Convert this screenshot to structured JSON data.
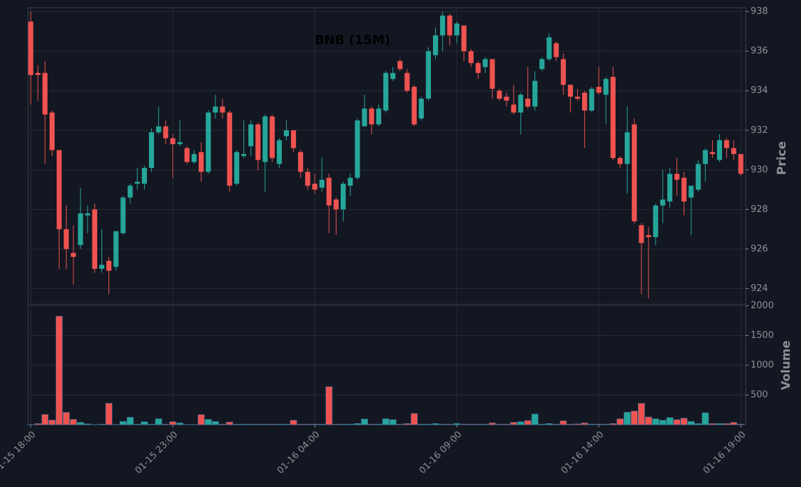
{
  "chart_data": {
    "type": "candlestick",
    "title": "BNB (15M)",
    "categories": [
      "01-15 18:00",
      null,
      null,
      null,
      null,
      null,
      null,
      null,
      null,
      null,
      null,
      null,
      null,
      null,
      null,
      null,
      null,
      null,
      null,
      null,
      "01-15 23:00",
      null,
      null,
      null,
      null,
      null,
      null,
      null,
      null,
      null,
      null,
      null,
      null,
      null,
      null,
      null,
      null,
      null,
      null,
      null,
      "01-16 04:00",
      null,
      null,
      null,
      null,
      null,
      null,
      null,
      null,
      null,
      null,
      null,
      null,
      null,
      null,
      null,
      null,
      null,
      null,
      null,
      "01-16 09:00",
      null,
      null,
      null,
      null,
      null,
      null,
      null,
      null,
      null,
      null,
      null,
      null,
      null,
      null,
      null,
      null,
      null,
      null,
      null,
      "01-16 14:00",
      null,
      null,
      null,
      null,
      null,
      null,
      null,
      null,
      null,
      null,
      null,
      null,
      null,
      null,
      null,
      null,
      null,
      null,
      null,
      "01-16 19:00"
    ],
    "open": [
      937.5,
      934.9,
      934.9,
      932.9,
      931,
      927,
      925.8,
      926.2,
      927.7,
      928,
      925,
      925.4,
      925.1,
      926.8,
      928.6,
      929.3,
      929.3,
      930.1,
      931.9,
      932.2,
      931.6,
      931.3,
      931.1,
      930.4,
      930.9,
      929.9,
      932.9,
      933.2,
      932.9,
      929.3,
      930.7,
      931.2,
      932.3,
      930.4,
      932.7,
      930.3,
      931.7,
      932,
      930.9,
      929.9,
      929.3,
      929.1,
      929.6,
      928.5,
      928,
      929.2,
      929.6,
      932.2,
      933.1,
      932.3,
      933,
      934.6,
      935.5,
      934.9,
      934.2,
      932.6,
      933.6,
      935.8,
      936.8,
      937.8,
      936.8,
      937.3,
      936,
      935.4,
      935.2,
      935.6,
      934,
      933.7,
      933.3,
      932.9,
      933.6,
      933.2,
      935.1,
      935.6,
      936.4,
      935.6,
      934.3,
      933.7,
      933.9,
      933,
      934.2,
      933.8,
      934.7,
      930.6,
      930.3,
      932.3,
      927.2,
      926.7,
      926.6,
      928.2,
      928.4,
      929.8,
      929.6,
      928.6,
      929,
      930.3,
      930.9,
      930.5,
      931.5,
      931.1,
      930.8
    ],
    "high": [
      938,
      935.3,
      935.5,
      933,
      931,
      928.2,
      927.2,
      929.1,
      928.2,
      928.3,
      927,
      925.6,
      926.9,
      928.7,
      929.3,
      930.1,
      930.2,
      932.1,
      933.2,
      932.5,
      931.8,
      932.5,
      931.2,
      931,
      931.4,
      933,
      933.8,
      933.6,
      933,
      931,
      932.5,
      932.5,
      932.4,
      932.8,
      932.8,
      931.6,
      932.5,
      932,
      931,
      930.1,
      929.8,
      930.6,
      929.8,
      928.6,
      929.4,
      929.8,
      932.6,
      933.8,
      933.2,
      933.3,
      935,
      935.2,
      935.6,
      935.1,
      934.3,
      933.7,
      936.2,
      937.2,
      938,
      937.9,
      937.5,
      937.3,
      936.1,
      935.5,
      935.7,
      935.6,
      934.1,
      933.9,
      934.3,
      933.9,
      935.2,
      935,
      935.7,
      936.9,
      936.5,
      935.9,
      934.3,
      934.1,
      934,
      934.2,
      935.2,
      934.7,
      935.2,
      930.7,
      933.2,
      932.6,
      927.3,
      927.1,
      928.3,
      930,
      930.1,
      930.6,
      929.9,
      929.2,
      930.5,
      931.1,
      931.5,
      931.8,
      931.6,
      931.5,
      930.8
    ],
    "low": [
      933.3,
      933.5,
      930.3,
      930.7,
      925,
      925,
      924.2,
      926,
      926.8,
      924.8,
      924.8,
      923.7,
      924.9,
      926.7,
      928.3,
      929,
      929,
      929.9,
      931.8,
      931.3,
      929.6,
      931.2,
      930.3,
      930.3,
      929.4,
      929.8,
      932.6,
      932.6,
      928.9,
      929.2,
      930.6,
      930.7,
      930,
      928.9,
      930.4,
      930.1,
      931.5,
      930.9,
      929.6,
      929,
      928.8,
      928.9,
      926.8,
      926.7,
      927.4,
      928.7,
      929.5,
      932.2,
      931.8,
      932.2,
      932.9,
      934.5,
      935,
      933.9,
      932.2,
      932.5,
      933.5,
      935.6,
      936,
      936.3,
      936.4,
      935.5,
      935.2,
      934.6,
      934.9,
      933.6,
      933.5,
      933.2,
      932.8,
      931.8,
      933.1,
      933,
      935,
      935.5,
      935.5,
      933.8,
      932.9,
      933.5,
      931.1,
      932.9,
      933.8,
      932.3,
      930.5,
      930.1,
      928.8,
      927.3,
      923.7,
      923.5,
      926.2,
      927.3,
      928.1,
      928.7,
      927.7,
      926.7,
      928.9,
      929.4,
      930.6,
      930.4,
      930.6,
      930.5,
      929.7
    ],
    "close": [
      934.8,
      934.8,
      932.8,
      931,
      927,
      926,
      925.6,
      927.8,
      927.8,
      925,
      925.2,
      924.9,
      926.9,
      928.6,
      929.2,
      929.4,
      930.1,
      931.9,
      932.2,
      931.6,
      931.3,
      931.4,
      930.4,
      930.8,
      929.9,
      932.9,
      933.2,
      932.9,
      929.2,
      930.9,
      930.8,
      932.3,
      930.5,
      932.7,
      930.6,
      931.5,
      932,
      931.1,
      929.9,
      929.2,
      929,
      929.5,
      928.2,
      928,
      929.3,
      929.6,
      932.5,
      933.1,
      932.3,
      933.1,
      934.9,
      934.9,
      935.1,
      934,
      932.3,
      933.6,
      936,
      936.8,
      937.8,
      936.8,
      937.4,
      936,
      935.4,
      934.9,
      935.6,
      934.1,
      933.6,
      933.5,
      932.9,
      933.8,
      933.2,
      934.5,
      935.6,
      936.7,
      935.7,
      934.3,
      933.7,
      933.6,
      933,
      934.1,
      933.9,
      934.6,
      930.6,
      930.3,
      931.9,
      927.4,
      926.3,
      926.6,
      928.2,
      928.5,
      929.8,
      929.5,
      928.4,
      929.2,
      930.3,
      931,
      930.8,
      931.5,
      931.1,
      930.8,
      929.8
    ],
    "up_color": "#26a69a",
    "down_color": "#ef5350",
    "ylabel": "Price",
    "ylim": [
      923.2,
      938.2
    ],
    "yticks": [
      924,
      926,
      928,
      930,
      932,
      934,
      936,
      938
    ],
    "grid": true,
    "volume": {
      "label": "Volume",
      "values": [
        5,
        20,
        172,
        78,
        1825,
        207,
        90,
        40,
        15,
        5,
        10,
        360,
        5,
        55,
        125,
        10,
        50,
        10,
        100,
        10,
        50,
        30,
        5,
        5,
        170,
        90,
        55,
        10,
        45,
        10,
        10,
        10,
        10,
        10,
        10,
        10,
        10,
        75,
        10,
        10,
        10,
        10,
        640,
        10,
        10,
        10,
        20,
        95,
        10,
        10,
        100,
        85,
        10,
        20,
        190,
        10,
        10,
        20,
        10,
        10,
        20,
        10,
        10,
        10,
        10,
        30,
        10,
        10,
        40,
        50,
        70,
        180,
        10,
        20,
        10,
        65,
        10,
        15,
        30,
        10,
        10,
        10,
        20,
        100,
        210,
        230,
        360,
        130,
        100,
        75,
        120,
        85,
        110,
        55,
        20,
        200,
        20,
        20,
        20,
        40,
        10
      ],
      "ylim": [
        0,
        2000
      ],
      "yticks": [
        500,
        1000,
        1500,
        2000
      ]
    }
  }
}
